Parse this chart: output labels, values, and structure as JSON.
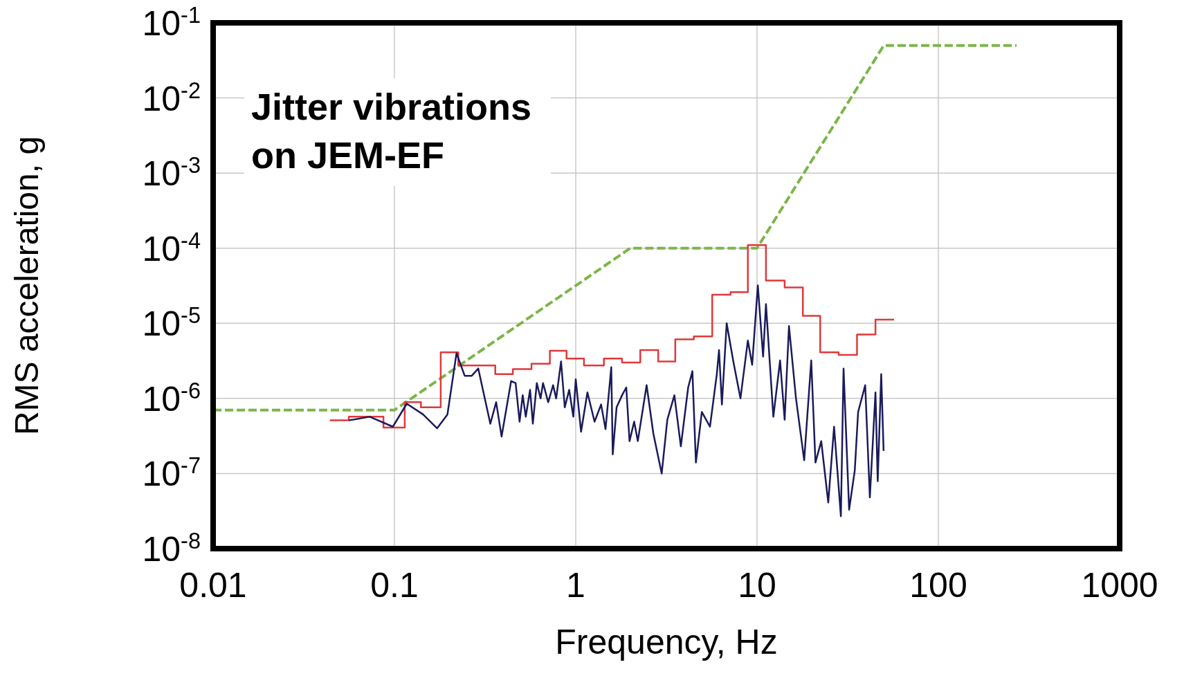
{
  "chart_data": {
    "type": "line",
    "title": "Jitter vibrations\non JEM-EF",
    "xlabel": "Frequency, Hz",
    "ylabel": "RMS acceleration, g",
    "log": "xy",
    "grid": true,
    "marker": "none",
    "xlim": [
      0.01,
      1000
    ],
    "xticks": [
      0.01,
      0.1,
      1,
      10,
      100,
      1000
    ],
    "ylim": [
      1e-08,
      0.1
    ],
    "yticks": [
      {
        "value": 1e-08,
        "label": "10$^{-8}$"
      },
      {
        "value": 1e-07,
        "label": "10$^{-7}$"
      },
      {
        "value": 1e-06,
        "label": "10$^{-6}$"
      },
      {
        "value": 1e-05,
        "label": "10$^{-5}$"
      },
      {
        "value": 0.0001,
        "label": "10$^{-4}$"
      },
      {
        "value": 0.001,
        "label": "10$^{-3}$"
      },
      {
        "value": 0.01,
        "label": "10$^{-2}$"
      },
      {
        "value": 0.1,
        "label": "10$^{-1}$"
      }
    ],
    "series": [
      {
        "type": "line",
        "color": "#7ab648",
        "line_style": "dashed",
        "x": [
          0.01,
          0.1,
          2,
          10,
          50,
          270
        ],
        "values": [
          7e-07,
          7e-07,
          0.0001,
          0.0001,
          0.05,
          0.05
        ]
      },
      {
        "type": "step",
        "color": "#e0383b",
        "line_style": "solid",
        "x": [
          0.044,
          0.056,
          0.087,
          0.114,
          0.14,
          0.18,
          0.225,
          0.36,
          0.45,
          0.57,
          0.72,
          0.89,
          1.11,
          1.43,
          1.8,
          2.27,
          2.85,
          3.54,
          4.48,
          5.66,
          7.15,
          8.9,
          11.2,
          14.2,
          17.9,
          22.3,
          28.2,
          35.6,
          45,
          57
        ],
        "values": [
          5.1e-07,
          5.7e-07,
          4.1e-07,
          8.9e-07,
          7.6e-07,
          4.1e-06,
          2.75e-06,
          2.1e-06,
          2.45e-06,
          2.9e-06,
          4.3e-06,
          3.4e-06,
          2.75e-06,
          3.4e-06,
          3e-06,
          4.4e-06,
          3.1e-06,
          6.1e-06,
          6.7e-06,
          2.4e-05,
          2.6e-05,
          0.00011,
          3.7e-05,
          3e-05,
          1.26e-05,
          4.1e-06,
          3.8e-06,
          7.1e-06,
          1.12e-05,
          1.12e-05
        ]
      },
      {
        "type": "line",
        "color": "#1b1a5a",
        "line_style": "solid",
        "x": [
          0.056,
          0.073,
          0.098,
          0.117,
          0.144,
          0.172,
          0.196,
          0.22,
          0.244,
          0.267,
          0.29,
          0.338,
          0.364,
          0.39,
          0.44,
          0.466,
          0.49,
          0.51,
          0.53,
          0.56,
          0.58,
          0.61,
          0.64,
          0.66,
          0.705,
          0.75,
          0.78,
          0.83,
          0.87,
          0.92,
          0.97,
          1.0,
          1.07,
          1.16,
          1.27,
          1.38,
          1.46,
          1.57,
          1.6,
          1.68,
          1.8,
          1.9,
          1.98,
          2.1,
          2.2,
          2.46,
          2.68,
          2.98,
          3.2,
          3.5,
          3.8,
          4.17,
          4.4,
          4.6,
          4.96,
          5.5,
          6.0,
          6.17,
          6.4,
          6.8,
          7.4,
          8.1,
          8.9,
          9.4,
          10.1,
          10.8,
          11.2,
          12.3,
          13.4,
          14.2,
          15,
          16.4,
          18.2,
          19.9,
          21,
          22.6,
          24.7,
          26.6,
          29,
          30,
          32.2,
          34.6,
          36.1,
          39.5,
          41.9,
          45,
          46.3,
          48.4,
          49.9
        ],
        "values": [
          5.1e-07,
          5.7e-07,
          4.2e-07,
          8.5e-07,
          6.1e-07,
          4e-07,
          6.1e-07,
          4e-06,
          2e-06,
          2e-06,
          2.5e-06,
          4.6e-07,
          8.9e-07,
          3.1e-07,
          1.7e-06,
          1.6e-06,
          4.9e-07,
          1.1e-06,
          5.7e-07,
          1.3e-06,
          4.6e-07,
          1.6e-06,
          1e-06,
          1.6e-06,
          8.9e-07,
          1.5e-06,
          1e-06,
          3.1e-06,
          7.6e-07,
          1.3e-06,
          5.7e-07,
          1.8e-06,
          3.6e-07,
          1.2e-06,
          4.9e-07,
          8.3e-07,
          3.9e-07,
          2.6e-06,
          1.8e-07,
          7.6e-07,
          1.1e-06,
          1.4e-06,
          2.7e-07,
          4.9e-07,
          2.7e-07,
          1.5e-06,
          3.4e-07,
          1e-07,
          5.2e-07,
          1.1e-06,
          2.3e-07,
          1.4e-06,
          2.3e-06,
          1.4e-07,
          6.6e-07,
          4.2e-07,
          2.1e-06,
          4.4e-06,
          8.3e-07,
          1e-05,
          3.1e-06,
          1e-06,
          5.9e-06,
          2.8e-06,
          3.2e-05,
          3.6e-06,
          1.8e-05,
          5.7e-07,
          3.2e-06,
          5.2e-07,
          9.2e-06,
          1e-06,
          1.5e-07,
          3.2e-06,
          1.4e-07,
          2.7e-07,
          4.1e-08,
          4.2e-07,
          2.7e-08,
          2.5e-06,
          3.3e-08,
          1.1e-07,
          6.6e-07,
          1.5e-06,
          4.8e-08,
          1.2e-06,
          7.9e-08,
          2.1e-06,
          2e-07
        ]
      }
    ]
  }
}
